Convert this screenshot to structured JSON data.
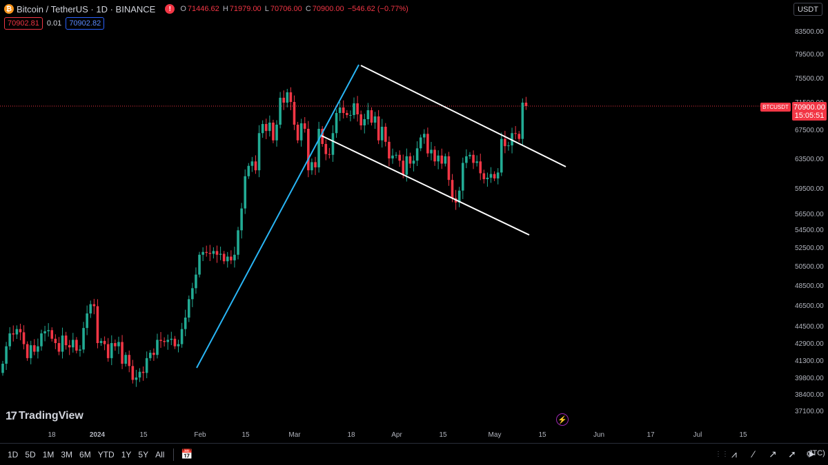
{
  "header": {
    "coin_glyph": "₿",
    "symbol_title": "Bitcoin / TetherUS · 1D · BINANCE",
    "alert_glyph": "!",
    "ohlc": {
      "o_key": "O",
      "o": "71446.62",
      "h_key": "H",
      "h": "71979.00",
      "l_key": "L",
      "l": "70706.00",
      "c_key": "C",
      "c": "70900.00",
      "change": "−546.62 (−0.77%)"
    },
    "bid": "70902.81",
    "spread": "0.01",
    "ask": "70902.82",
    "currency": "USDT"
  },
  "price_tag": {
    "price": "70900.00",
    "countdown": "15:05:51",
    "symbol": "BTCUSDT"
  },
  "logo": {
    "mark": "17",
    "text": "TradingView"
  },
  "toolbar": {
    "timeframes": [
      "1D",
      "5D",
      "1M",
      "3M",
      "6M",
      "YTD",
      "1Y",
      "5Y",
      "All"
    ],
    "utc": "JTC)"
  },
  "colors": {
    "up": "#22ab94",
    "down": "#f23645",
    "trend": "#29b6f6",
    "channel": "#ffffff",
    "bg": "#000000"
  },
  "chart_data": {
    "type": "candlestick",
    "symbol": "BTCUSDT",
    "interval": "1D",
    "y_ticks": [
      83500,
      79500,
      75500,
      71500,
      67500,
      63500,
      59500,
      56500,
      54500,
      52500,
      50500,
      48500,
      46500,
      44500,
      42900,
      41300,
      39800,
      38400,
      37100
    ],
    "y_tick_labels": [
      "83500.00",
      "79500.00",
      "75500.00",
      "71500.00",
      "67500.00",
      "63500.00",
      "59500.00",
      "56500.00",
      "54500.00",
      "52500.00",
      "50500.00",
      "48500.00",
      "46500.00",
      "44500.00",
      "42900.00",
      "41300.00",
      "39800.00",
      "38400.00",
      "37100.00"
    ],
    "x_tick_labels": [
      "18",
      "2024",
      "15",
      "Feb",
      "15",
      "Mar",
      "18",
      "Apr",
      "15",
      "May",
      "15",
      "Jun",
      "17",
      "Jul",
      "15"
    ],
    "start_date": "2023-12-07",
    "last_price": 70900,
    "closes": [
      41000,
      42600,
      43800,
      43700,
      44200,
      43900,
      42800,
      41500,
      42700,
      42100,
      42600,
      43800,
      44000,
      44100,
      43300,
      42900,
      42100,
      43600,
      42700,
      42500,
      43200,
      42200,
      42300,
      44300,
      45700,
      46600,
      46400,
      42900,
      43100,
      42800,
      41500,
      42900,
      42600,
      43000,
      41000,
      41800,
      40800,
      39600,
      39800,
      40300,
      40200,
      41500,
      42000,
      41800,
      43200,
      43100,
      43000,
      43200,
      43300,
      42600,
      42800,
      44200,
      45300,
      47100,
      48200,
      49600,
      51700,
      52000,
      51900,
      51800,
      52100,
      51700,
      51800,
      51000,
      51500,
      51100,
      51700,
      54400,
      57100,
      61100,
      62500,
      63100,
      61900,
      67000,
      68300,
      67300,
      68500,
      66000,
      68200,
      72200,
      71400,
      73100,
      71500,
      68200,
      66000,
      68400,
      67600,
      61900,
      63000,
      62300,
      67600,
      65500,
      64100,
      64000,
      67000,
      69900,
      70700,
      69900,
      69600,
      69600,
      71300,
      69700,
      68100,
      69000,
      70300,
      68500,
      69400,
      66000,
      67900,
      65800,
      63500,
      63900,
      64000,
      63200,
      61300,
      63800,
      62800,
      63200,
      64900,
      66400,
      66900,
      64200,
      64700,
      63100,
      63900,
      62800,
      63800,
      60600,
      58300,
      57800,
      59200,
      62900,
      63800,
      64000,
      62900,
      63100,
      61500,
      60700,
      60900,
      61400,
      60800,
      61600,
      66200,
      65200,
      65300,
      67000,
      66900,
      66200,
      71400,
      70900
    ]
  }
}
